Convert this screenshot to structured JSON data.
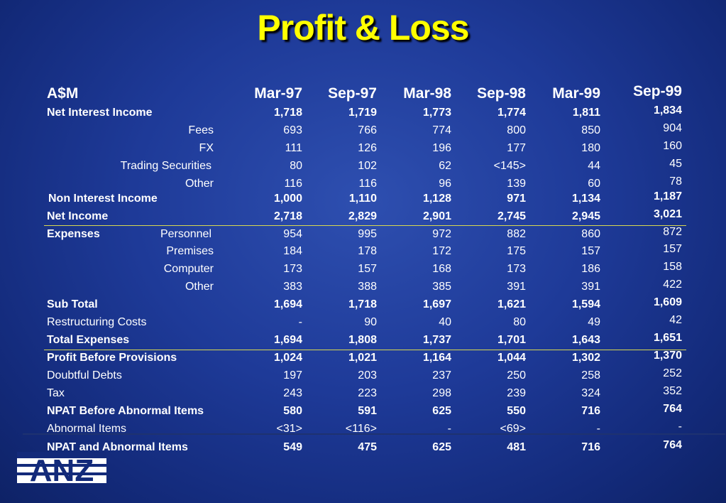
{
  "title": "Profit & Loss",
  "columns": {
    "label": "A$M",
    "periods": [
      "Mar-97",
      "Sep-97",
      "Mar-98",
      "Sep-98",
      "Mar-99",
      "Sep-99"
    ]
  },
  "rows": [
    {
      "label": "Net Interest Income",
      "values": [
        "1,718",
        "1,719",
        "1,773",
        "1,774",
        "1,811",
        "1,834"
      ]
    },
    {
      "label": "Fees",
      "values": [
        "693",
        "766",
        "774",
        "800",
        "850",
        "904"
      ]
    },
    {
      "label": "FX",
      "values": [
        "111",
        "126",
        "196",
        "177",
        "180",
        "160"
      ]
    },
    {
      "label": "Trading Securities",
      "values": [
        "80",
        "102",
        "62",
        "<145>",
        "44",
        "45"
      ]
    },
    {
      "label": "Other",
      "values": [
        "116",
        "116",
        "96",
        "139",
        "60",
        "78"
      ]
    },
    {
      "label": "Non Interest Income",
      "values": [
        "1,000",
        "1,110",
        "1,128",
        "971",
        "1,134",
        "1,187"
      ]
    },
    {
      "label": "Net Income",
      "values": [
        "2,718",
        "2,829",
        "2,901",
        "2,745",
        "2,945",
        "3,021"
      ]
    },
    {
      "label": "Personnel",
      "group_label": "Expenses",
      "values": [
        "954",
        "995",
        "972",
        "882",
        "860",
        "872"
      ]
    },
    {
      "label": "Premises",
      "values": [
        "184",
        "178",
        "172",
        "175",
        "157",
        "157"
      ]
    },
    {
      "label": "Computer",
      "values": [
        "173",
        "157",
        "168",
        "173",
        "186",
        "158"
      ]
    },
    {
      "label": "Other",
      "values": [
        "383",
        "388",
        "385",
        "391",
        "391",
        "422"
      ]
    },
    {
      "label": "Sub Total",
      "values": [
        "1,694",
        "1,718",
        "1,697",
        "1,621",
        "1,594",
        "1,609"
      ]
    },
    {
      "label": "Restructuring Costs",
      "values": [
        "-",
        "90",
        "40",
        "80",
        "49",
        "42"
      ]
    },
    {
      "label": "Total Expenses",
      "values": [
        "1,694",
        "1,808",
        "1,737",
        "1,701",
        "1,643",
        "1,651"
      ]
    },
    {
      "label": "Profit Before Provisions",
      "values": [
        "1,024",
        "1,021",
        "1,164",
        "1,044",
        "1,302",
        "1,370"
      ]
    },
    {
      "label": "Doubtful Debts",
      "values": [
        "197",
        "203",
        "237",
        "250",
        "258",
        "252"
      ]
    },
    {
      "label": "Tax",
      "values": [
        "243",
        "223",
        "298",
        "239",
        "324",
        "352"
      ]
    },
    {
      "label": "NPAT Before  Abnormal Items",
      "values": [
        "580",
        "591",
        "625",
        "550",
        "716",
        "764"
      ]
    },
    {
      "label": "Abnormal Items",
      "values": [
        "<31>",
        "<116>",
        "-",
        "<69>",
        "-",
        "-"
      ]
    },
    {
      "label": "NPAT and  Abnormal Items",
      "values": [
        "549",
        "475",
        "625",
        "481",
        "716",
        "764"
      ]
    }
  ],
  "logo": {
    "text": "ANZ"
  },
  "colors": {
    "title": "#ffff00",
    "rule": "#d8d850",
    "background": "#1e3a98"
  }
}
